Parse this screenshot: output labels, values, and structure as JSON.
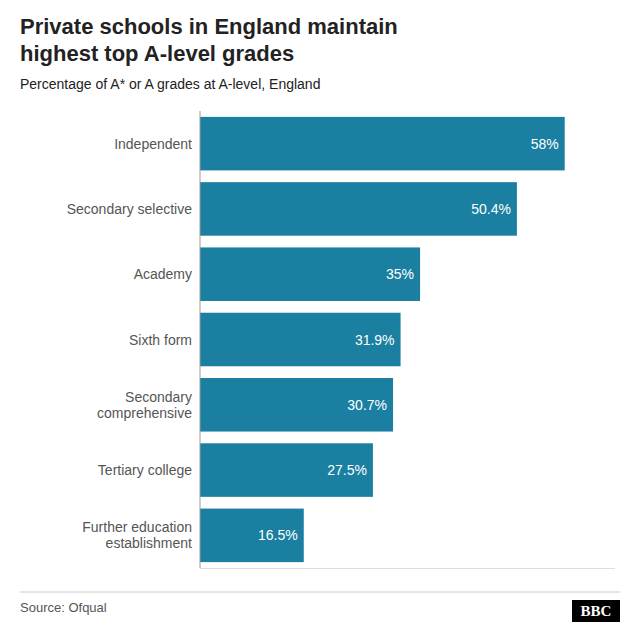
{
  "chart_data": {
    "type": "bar",
    "orientation": "horizontal",
    "title": "Private schools in England maintain\nhighest top A-level grades",
    "subtitle": "Percentage of A* or A grades at A-level, England",
    "source": "Source: Ofqual",
    "annotations": [
      "BBC"
    ],
    "categories": [
      "Independent",
      "Secondary selective",
      "Academy",
      "Sixth form",
      "Secondary\ncomprehensive",
      "Tertiary college",
      "Further education\nestablishment"
    ],
    "values": [
      58.0,
      50.4,
      35.0,
      31.9,
      30.7,
      27.5,
      16.5
    ],
    "value_labels": [
      "58%",
      "50.4%",
      "35%",
      "31.9%",
      "30.7%",
      "27.5%",
      "16.5%"
    ],
    "data_labels": true,
    "color": "#1a7fa0",
    "xlim": [
      0,
      66
    ],
    "grid": false,
    "tick_labels": "y"
  }
}
